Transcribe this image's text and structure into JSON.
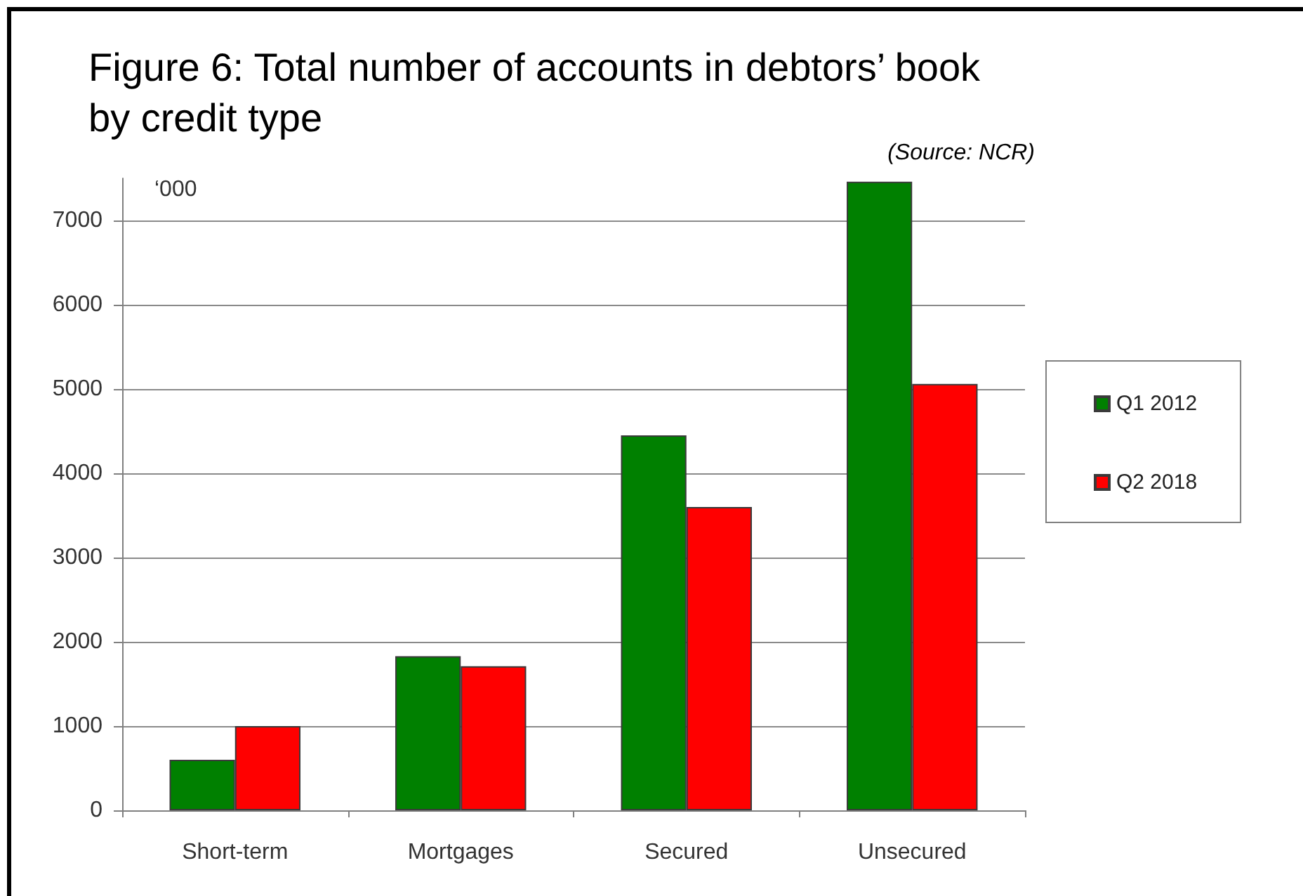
{
  "chart_data": {
    "type": "bar",
    "title": "Figure 6: Total number of accounts in debtors’ book by credit type",
    "ylabel": "‘000",
    "annotations": [
      "(Source: NCR)"
    ],
    "categories": [
      "Short-term",
      "Mortgages",
      "Secured",
      "Unsecured"
    ],
    "series": [
      {
        "name": "Q1 2012",
        "color": "#008000",
        "values": [
          600,
          1830,
          4450,
          7460
        ]
      },
      {
        "name": "Q2 2018",
        "color": "#ff0000",
        "values": [
          1000,
          1710,
          3600,
          5060
        ]
      }
    ],
    "ylim": [
      0,
      7500
    ],
    "yticks": [
      0,
      1000,
      2000,
      3000,
      4000,
      5000,
      6000,
      7000
    ],
    "grid": "y",
    "legend": "right"
  }
}
